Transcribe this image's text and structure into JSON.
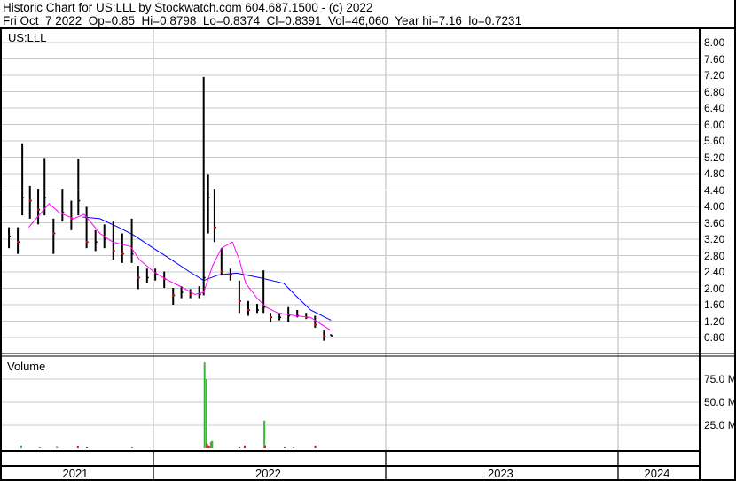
{
  "header": {
    "title": "Historic Chart for US:LLL by Stockwatch.com 604.687.1500 - (c) 2022",
    "quote": "Fri Oct  7 2022  Op=0.85  Hi=0.8798  Lo=0.8374  Cl=0.8391  Vol=46,060  Year hi=7.16  lo=0.7231"
  },
  "chart_data": {
    "type": "ohlc",
    "symbol": "US:LLL",
    "colors": {
      "price": "#000000",
      "down_mark": "#ff0000",
      "ma_short": "#ff00ff",
      "ma_long": "#0000ff",
      "vol_up": "#3cb43c",
      "vol_down": "#ff0000",
      "grid": "#c8c8c8"
    },
    "price_axis": {
      "min": 0.8,
      "max": 8.0,
      "step": 0.4,
      "ticks": [
        "8.00",
        "7.60",
        "7.20",
        "6.80",
        "6.40",
        "6.00",
        "5.60",
        "5.20",
        "4.80",
        "4.40",
        "4.00",
        "3.60",
        "3.20",
        "2.80",
        "2.40",
        "2.00",
        "1.60",
        "1.20",
        "0.80"
      ],
      "side": "right"
    },
    "x_axis": {
      "years": [
        "2021",
        "2022",
        "2023",
        "2024"
      ],
      "range": [
        "2021-05-05",
        "2024-05-05"
      ]
    },
    "price_bars": [
      [
        "2021-05-05",
        3.56,
        2.77,
        3.2
      ],
      [
        "2021-05-19",
        3.49,
        2.98,
        3.27
      ],
      [
        "2021-06-02",
        3.49,
        2.84,
        3.13
      ],
      [
        "2021-06-09",
        5.54,
        3.78,
        4.21
      ],
      [
        "2021-06-21",
        4.5,
        3.7,
        4.14
      ],
      [
        "2021-07-04",
        4.43,
        3.56,
        3.92
      ],
      [
        "2021-07-14",
        5.18,
        3.78,
        4.21
      ],
      [
        "2021-07-28",
        3.7,
        2.84,
        3.34
      ],
      [
        "2021-08-11",
        4.43,
        3.63,
        3.85
      ],
      [
        "2021-08-25",
        4.14,
        3.42,
        3.7
      ],
      [
        "2021-09-05",
        5.16,
        3.78,
        4.14
      ],
      [
        "2021-09-18",
        3.99,
        2.98,
        3.13
      ],
      [
        "2021-10-02",
        3.42,
        2.91,
        3.13
      ],
      [
        "2021-10-16",
        3.56,
        2.98,
        3.2
      ],
      [
        "2021-10-30",
        3.63,
        2.7,
        2.91
      ],
      [
        "2021-11-13",
        3.34,
        2.62,
        2.84
      ],
      [
        "2021-11-28",
        3.7,
        2.62,
        2.84
      ],
      [
        "2021-12-08",
        2.55,
        1.98,
        2.26
      ],
      [
        "2021-12-22",
        2.48,
        2.12,
        2.26
      ],
      [
        "2022-01-04",
        2.48,
        2.19,
        2.33
      ],
      [
        "2022-01-18",
        2.41,
        2.01,
        2.23
      ],
      [
        "2022-02-01",
        2.01,
        1.6,
        1.83
      ],
      [
        "2022-02-14",
        2.05,
        1.76,
        1.9
      ],
      [
        "2022-02-28",
        1.98,
        1.76,
        1.85
      ],
      [
        "2022-03-14",
        2.05,
        1.76,
        1.85
      ],
      [
        "2022-03-21",
        7.16,
        1.83,
        2.26
      ],
      [
        "2022-03-28",
        4.79,
        3.34,
        4.21
      ],
      [
        "2022-04-07",
        4.43,
        3.13,
        3.49
      ],
      [
        "2022-04-18",
        2.98,
        2.33,
        2.41
      ],
      [
        "2022-05-02",
        2.48,
        2.19,
        2.33
      ],
      [
        "2022-05-16",
        2.19,
        1.4,
        1.69
      ],
      [
        "2022-05-30",
        1.69,
        1.33,
        1.47
      ],
      [
        "2022-06-13",
        1.62,
        1.4,
        1.47
      ],
      [
        "2022-06-23",
        2.44,
        1.4,
        1.54
      ],
      [
        "2022-07-04",
        1.4,
        1.18,
        1.29
      ],
      [
        "2022-07-18",
        1.4,
        1.22,
        1.29
      ],
      [
        "2022-08-01",
        1.54,
        1.18,
        1.33
      ],
      [
        "2022-08-15",
        1.47,
        1.29,
        1.33
      ],
      [
        "2022-08-29",
        1.4,
        1.25,
        1.29
      ],
      [
        "2022-09-12",
        1.33,
        1.04,
        1.11
      ],
      [
        "2022-09-26",
        0.97,
        0.72,
        0.83
      ],
      [
        "2022-10-07",
        0.88,
        0.84,
        0.84
      ]
    ],
    "ma_short": [
      [
        "2021-06-19",
        3.49
      ],
      [
        "2021-07-21",
        4.07
      ],
      [
        "2021-08-06",
        3.85
      ],
      [
        "2021-08-29",
        3.7
      ],
      [
        "2021-09-14",
        3.81
      ],
      [
        "2021-10-09",
        3.34
      ],
      [
        "2021-10-29",
        3.13
      ],
      [
        "2021-11-26",
        3.02
      ],
      [
        "2021-12-10",
        2.7
      ],
      [
        "2022-01-01",
        2.41
      ],
      [
        "2022-01-20",
        2.23
      ],
      [
        "2022-02-17",
        2.01
      ],
      [
        "2022-03-07",
        1.85
      ],
      [
        "2022-03-21",
        1.9
      ],
      [
        "2022-04-04",
        2.55
      ],
      [
        "2022-04-18",
        2.98
      ],
      [
        "2022-05-05",
        3.13
      ],
      [
        "2022-05-16",
        2.7
      ],
      [
        "2022-05-26",
        2.12
      ],
      [
        "2022-06-13",
        1.76
      ],
      [
        "2022-06-27",
        1.54
      ],
      [
        "2022-07-15",
        1.4
      ],
      [
        "2022-08-12",
        1.33
      ],
      [
        "2022-09-05",
        1.29
      ],
      [
        "2022-09-23",
        1.11
      ],
      [
        "2022-10-07",
        0.97
      ]
    ],
    "ma_long": [
      [
        "2021-09-12",
        3.74
      ],
      [
        "2021-10-09",
        3.7
      ],
      [
        "2021-11-07",
        3.49
      ],
      [
        "2021-11-30",
        3.31
      ],
      [
        "2022-01-01",
        2.98
      ],
      [
        "2022-01-29",
        2.7
      ],
      [
        "2022-02-26",
        2.41
      ],
      [
        "2022-03-21",
        2.19
      ],
      [
        "2022-04-14",
        2.33
      ],
      [
        "2022-05-12",
        2.37
      ],
      [
        "2022-06-17",
        2.26
      ],
      [
        "2022-07-25",
        2.12
      ],
      [
        "2022-08-12",
        1.83
      ],
      [
        "2022-09-05",
        1.47
      ],
      [
        "2022-10-07",
        1.22
      ]
    ],
    "volume": {
      "label": "Volume",
      "ticks": [
        "75.0 M",
        "50.0 M",
        "25.0 M"
      ],
      "tick_values": [
        75,
        50,
        25
      ],
      "unit": "M",
      "bars": [
        [
          "2021-06-06",
          3,
          "up"
        ],
        [
          "2021-07-05",
          1,
          "up"
        ],
        [
          "2021-08-01",
          1.5,
          "up"
        ],
        [
          "2021-09-03",
          2,
          "down"
        ],
        [
          "2021-09-17",
          1,
          "down"
        ],
        [
          "2021-11-27",
          1,
          "up"
        ],
        [
          "2022-03-21",
          93,
          "up"
        ],
        [
          "2022-03-24",
          75,
          "up"
        ],
        [
          "2022-03-25",
          5,
          "down"
        ],
        [
          "2022-03-28",
          3,
          "down"
        ],
        [
          "2022-03-31",
          7,
          "up"
        ],
        [
          "2022-04-02",
          8,
          "up"
        ],
        [
          "2022-05-15",
          1,
          "down"
        ],
        [
          "2022-05-23",
          3,
          "down"
        ],
        [
          "2022-06-23",
          30,
          "up"
        ],
        [
          "2022-06-24",
          3,
          "down"
        ],
        [
          "2022-07-25",
          1,
          "down"
        ],
        [
          "2022-08-08",
          1,
          "up"
        ],
        [
          "2022-09-11",
          3,
          "down"
        ]
      ]
    }
  }
}
